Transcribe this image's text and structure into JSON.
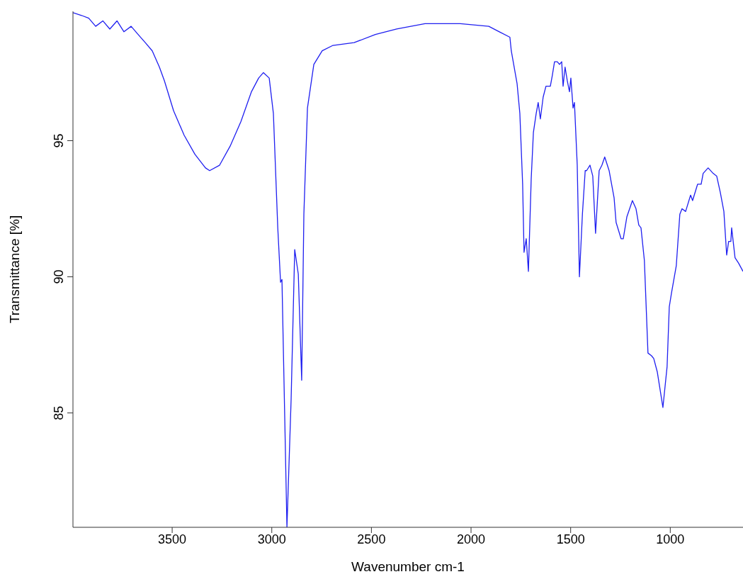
{
  "chart_data": {
    "type": "line",
    "xlabel": "Wavenumber cm-1",
    "ylabel": "Transmittance [%]",
    "x": [
      3998,
      3955,
      3919,
      3884,
      3848,
      3813,
      3777,
      3742,
      3706,
      3671,
      3635,
      3600,
      3564,
      3539,
      3493,
      3440,
      3386,
      3333,
      3312,
      3262,
      3209,
      3155,
      3102,
      3066,
      3042,
      3013,
      2992,
      2970,
      2956,
      2949,
      2924,
      2903,
      2885,
      2867,
      2850,
      2839,
      2821,
      2789,
      2747,
      2693,
      2587,
      2480,
      2373,
      2231,
      2054,
      1911,
      1858,
      1805,
      1798,
      1769,
      1755,
      1741,
      1734,
      1723,
      1712,
      1698,
      1687,
      1673,
      1663,
      1652,
      1638,
      1624,
      1602,
      1592,
      1581,
      1567,
      1556,
      1545,
      1538,
      1528,
      1517,
      1506,
      1499,
      1488,
      1481,
      1467,
      1456,
      1441,
      1427,
      1420,
      1403,
      1389,
      1375,
      1357,
      1343,
      1329,
      1307,
      1282,
      1272,
      1247,
      1236,
      1218,
      1190,
      1172,
      1158,
      1147,
      1130,
      1112,
      1094,
      1083,
      1065,
      1037,
      1016,
      1005,
      994,
      970,
      952,
      941,
      923,
      898,
      888,
      863,
      845,
      835,
      810,
      785,
      767,
      749,
      731,
      717,
      707,
      696,
      692,
      675,
      657,
      635
    ],
    "series": [
      {
        "color": "#1f1ff0",
        "values": [
          99.7,
          99.6,
          99.5,
          99.2,
          99.4,
          99.1,
          99.4,
          99.0,
          99.2,
          98.9,
          98.6,
          98.3,
          97.7,
          97.2,
          96.1,
          95.2,
          94.5,
          94.0,
          93.9,
          94.1,
          94.8,
          95.7,
          96.8,
          97.3,
          97.5,
          97.3,
          96.0,
          91.8,
          89.8,
          89.9,
          80.8,
          85.5,
          91.0,
          90.1,
          86.2,
          92.3,
          96.2,
          97.8,
          98.3,
          98.5,
          98.6,
          98.9,
          99.1,
          99.3,
          99.3,
          99.2,
          99.0,
          98.8,
          98.3,
          97.1,
          96.0,
          93.4,
          90.9,
          91.4,
          90.2,
          93.6,
          95.3,
          96.0,
          96.4,
          95.8,
          96.6,
          97.0,
          97.0,
          97.4,
          97.9,
          97.9,
          97.8,
          97.9,
          97.0,
          97.7,
          97.2,
          96.8,
          97.3,
          96.2,
          96.4,
          94.1,
          90.0,
          92.3,
          93.9,
          93.9,
          94.1,
          93.7,
          91.6,
          93.9,
          94.1,
          94.4,
          93.9,
          92.9,
          92.0,
          91.4,
          91.4,
          92.2,
          92.8,
          92.5,
          91.9,
          91.8,
          90.6,
          87.2,
          87.1,
          87.0,
          86.5,
          85.2,
          86.7,
          88.9,
          89.4,
          90.4,
          92.3,
          92.5,
          92.4,
          93.0,
          92.8,
          93.4,
          93.4,
          93.8,
          94.0,
          93.8,
          93.7,
          93.1,
          92.4,
          90.8,
          91.3,
          91.3,
          91.8,
          90.7,
          90.5,
          90.2
        ]
      }
    ],
    "xlim": [
      3998,
      635
    ],
    "ylim": [
      80.8,
      99.75
    ],
    "xticks": [
      3500,
      3000,
      2500,
      2000,
      1500,
      1000
    ],
    "yticks": [
      85,
      90,
      95
    ],
    "grid": false,
    "legend": false,
    "marker": "none",
    "line_style": "solid"
  }
}
